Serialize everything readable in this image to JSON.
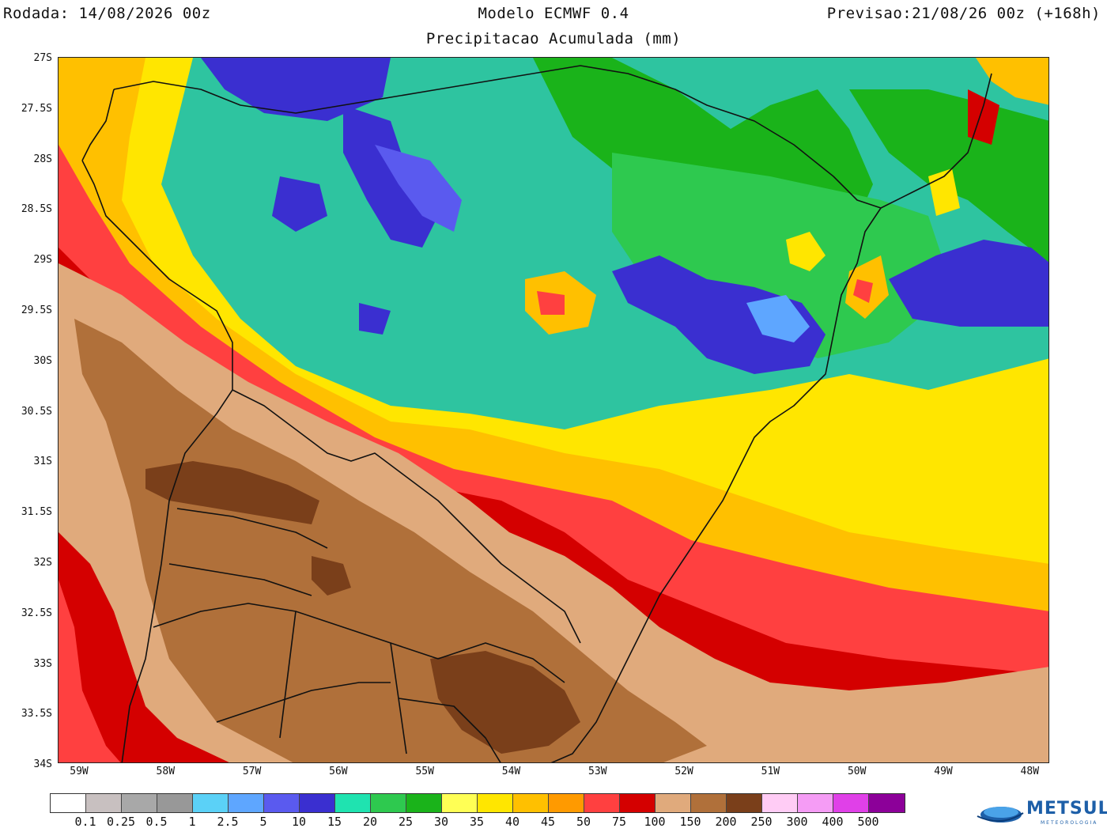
{
  "header": {
    "run_label": "Rodada: 14/08/2026 00z",
    "model_label": "Modelo ECMWF 0.4",
    "forecast_label": "Previsao:21/08/26 00z (+168h)",
    "subtitle": "Precipitacao Acumulada (mm)"
  },
  "map": {
    "lat_ticks": [
      "27S",
      "27.5S",
      "28S",
      "28.5S",
      "29S",
      "29.5S",
      "30S",
      "30.5S",
      "31S",
      "31.5S",
      "32S",
      "32.5S",
      "33S",
      "33.5S",
      "34S"
    ],
    "lon_ticks": [
      "59W",
      "58W",
      "57W",
      "56W",
      "55W",
      "54W",
      "53W",
      "52W",
      "51W",
      "50W",
      "49W",
      "48W"
    ]
  },
  "colorbar": {
    "colors": [
      "#ffffff",
      "#c8c0c0",
      "#a8a8a8",
      "#989898",
      "#5bd1f7",
      "#5ea6ff",
      "#5a5aef",
      "#3a2fd0",
      "#1fe3b0",
      "#2ec94f",
      "#1ab31a",
      "#ffff55",
      "#ffe600",
      "#ffc000",
      "#ff9a00",
      "#ff4040",
      "#d40000",
      "#e0aa7c",
      "#b0703a",
      "#7a3f1a",
      "#ffccf5",
      "#f59cf5",
      "#e040e8",
      "#8c0099"
    ],
    "labels": [
      "0.1",
      "0.25",
      "0.5",
      "1",
      "2.5",
      "5",
      "10",
      "15",
      "20",
      "25",
      "30",
      "35",
      "40",
      "45",
      "50",
      "75",
      "100",
      "150",
      "200",
      "250",
      "300",
      "400",
      "500"
    ]
  },
  "logo": {
    "name": "METSUL",
    "tagline": "METEOROLOGIA"
  }
}
